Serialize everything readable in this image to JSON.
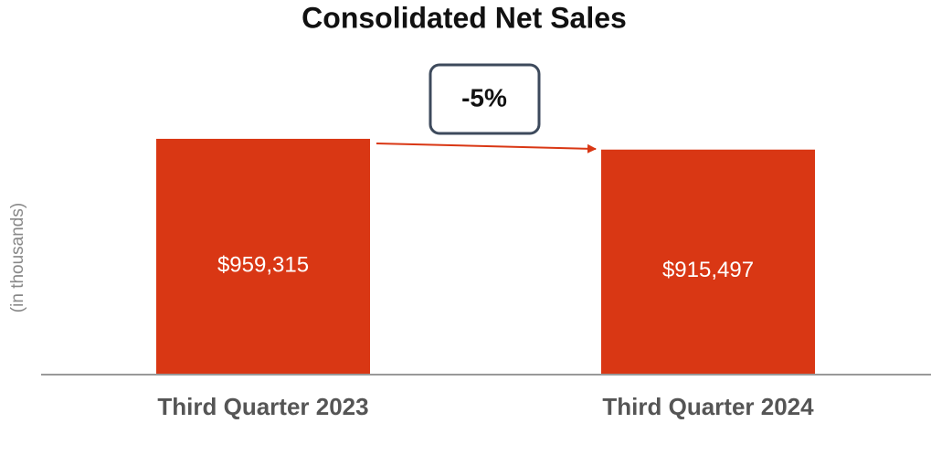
{
  "chart_data": {
    "type": "bar",
    "title": "Consolidated Net Sales",
    "y_label": "(in thousands)",
    "categories": [
      "Third Quarter 2023",
      "Third Quarter 2024"
    ],
    "values": [
      959315,
      915497
    ],
    "value_labels": [
      "$959,315",
      "$915,497"
    ],
    "color": "#d93714",
    "ylim": [
      0,
      1000000
    ],
    "annotation": "-5%"
  }
}
